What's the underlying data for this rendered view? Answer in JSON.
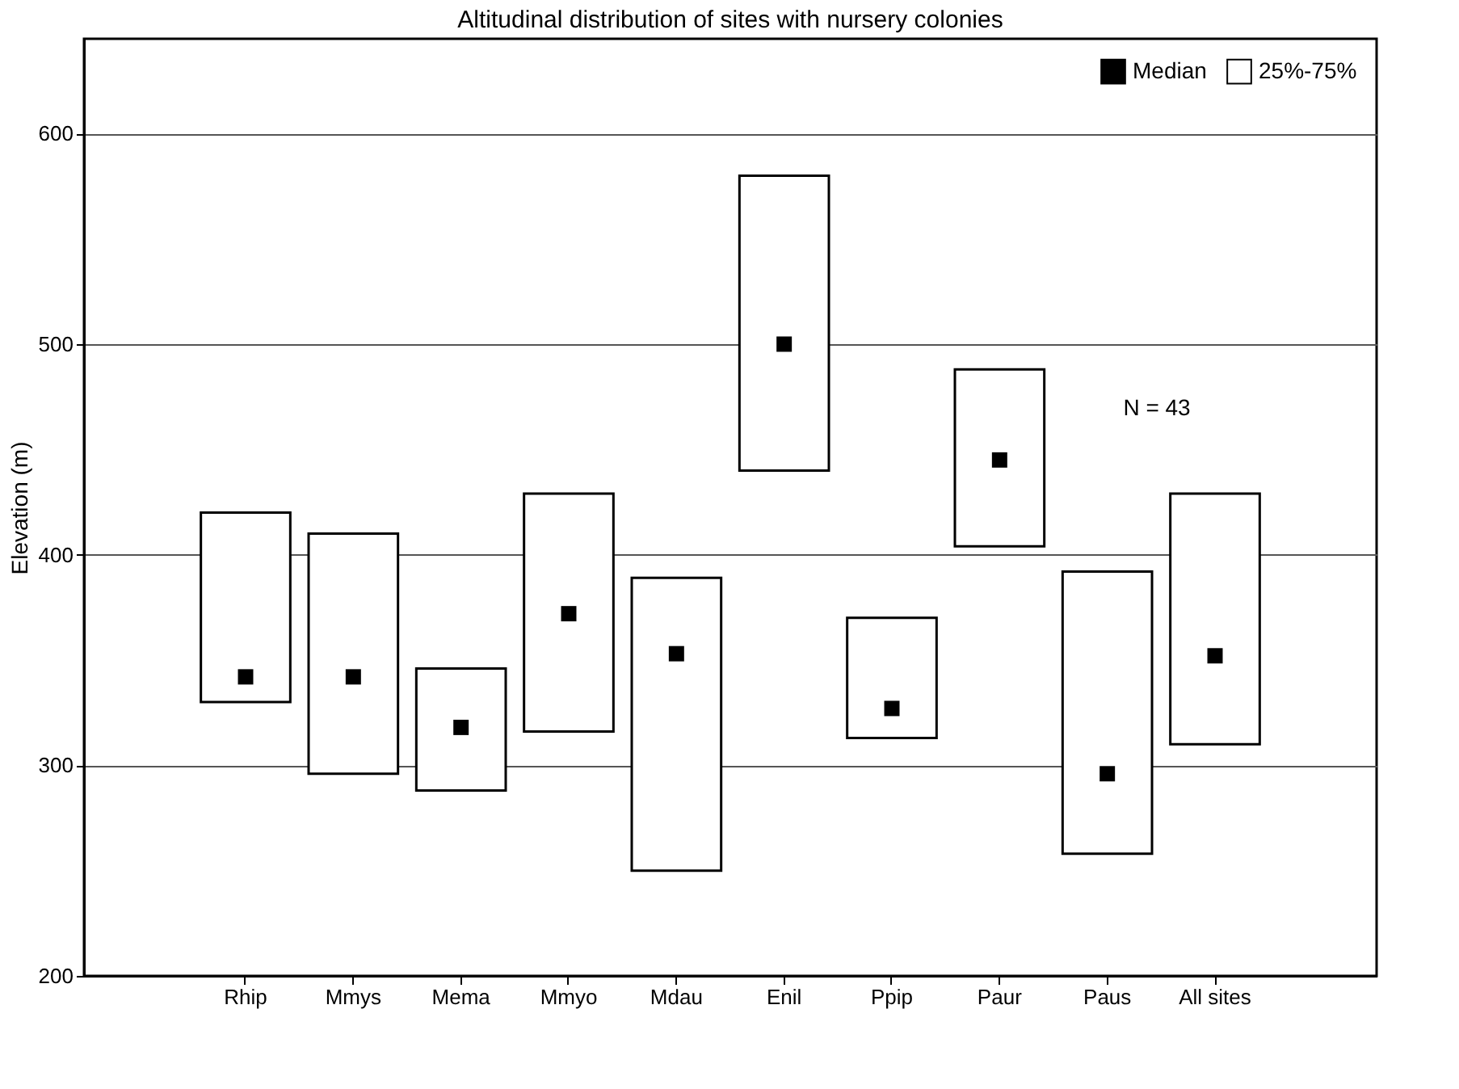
{
  "chart_data": {
    "type": "bar",
    "title": "Altitudinal distribution of sites with nursery colonies",
    "ylabel": "Elevation (m)",
    "categories": [
      "Rhip",
      "Mmys",
      "Mema",
      "Mmyo",
      "Mdau",
      "Enil",
      "Ppip",
      "Paur",
      "Paus",
      "All sites"
    ],
    "series": [
      {
        "name": "Median",
        "type": "scatter",
        "marker": "square",
        "color": "#000000",
        "x": [
          "Rhip",
          "Mmys",
          "Mema",
          "Mmyo",
          "Mdau",
          "Enil",
          "Ppip",
          "Paur",
          "Paus",
          "All sites"
        ],
        "values": [
          342,
          342,
          318,
          372,
          353,
          500,
          327,
          445,
          296,
          352
        ]
      },
      {
        "name": "25%-75%",
        "color": "#ffffff",
        "base": [
          330,
          296,
          288,
          316,
          250,
          440,
          313,
          404,
          258,
          310
        ],
        "values": [
          90,
          114,
          58,
          113,
          139,
          140,
          57,
          84,
          134,
          119
        ]
      }
    ],
    "ylim": [
      200,
      645
    ],
    "yticks": [
      200,
      300,
      400,
      500,
      600
    ],
    "grid": "y",
    "legend": "top right",
    "annotations": [
      "N = 43"
    ]
  }
}
